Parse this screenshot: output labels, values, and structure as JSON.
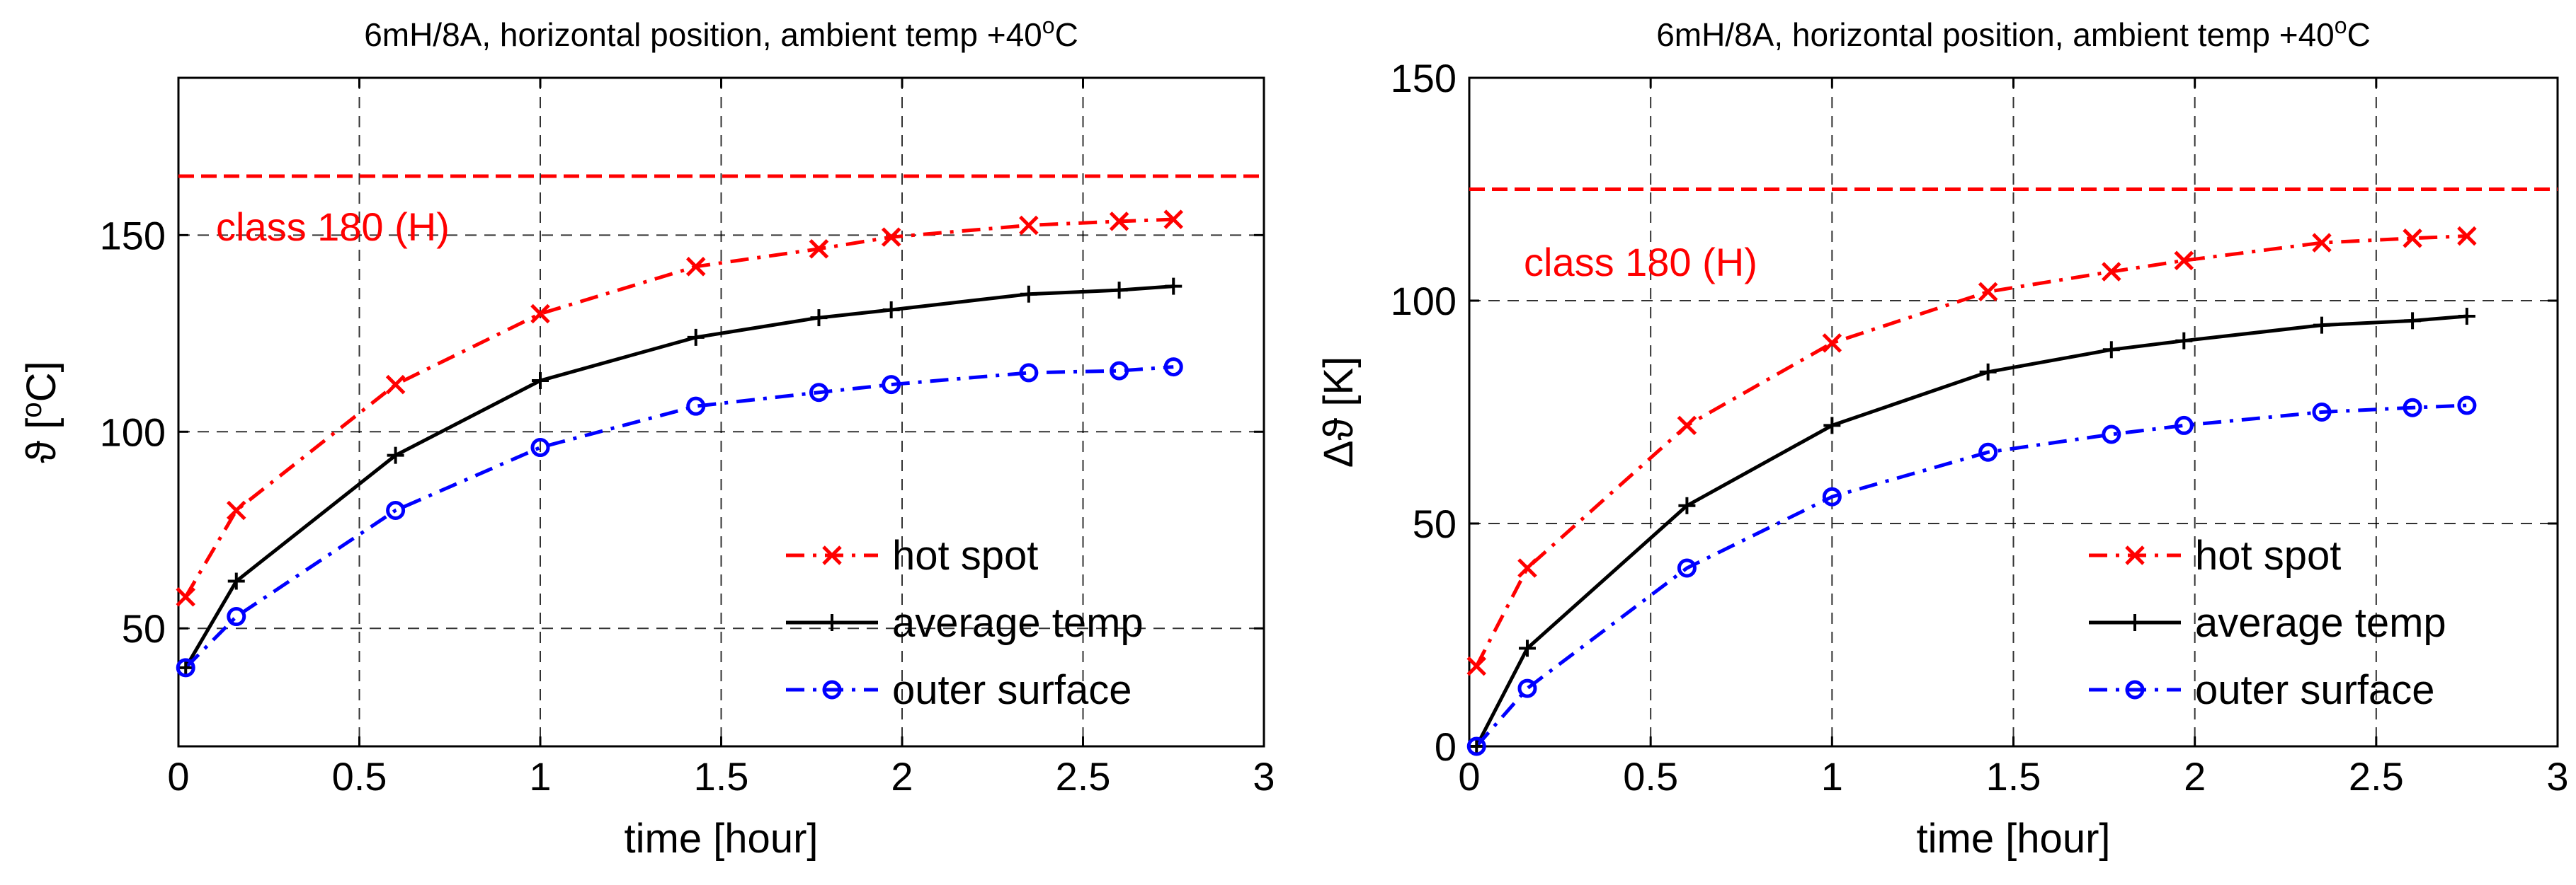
{
  "chart_data": [
    {
      "type": "line",
      "title": "6mH/8A, horizontal position, ambient temp +40",
      "title_sup": "o",
      "title_unit": "C",
      "xlabel": "time [hour]",
      "ylabel_prefix": "ϑ [",
      "ylabel_sup": "o",
      "ylabel_suffix": "C]",
      "xlim": [
        0,
        3
      ],
      "ylim": [
        20,
        190
      ],
      "xticks": [
        0,
        0.5,
        1,
        1.5,
        2,
        2.5,
        3
      ],
      "xtick_labels": [
        "0",
        "0.5",
        "1",
        "1.5",
        "2",
        "2.5",
        "3"
      ],
      "yticks": [
        50,
        100,
        150
      ],
      "ytick_labels": [
        "50",
        "100",
        "150"
      ],
      "grid": true,
      "legend_position": "bottom-right",
      "limit_line": {
        "value": 165,
        "label": "class 180 (H)",
        "color": "#ff0000"
      },
      "series": [
        {
          "name": "hot spot",
          "color": "#ff0000",
          "style": "dashdot",
          "marker": "x",
          "x": [
            0.02,
            0.16,
            0.6,
            1.0,
            1.43,
            1.77,
            1.97,
            2.35,
            2.6,
            2.75
          ],
          "y": [
            58,
            80,
            112,
            130,
            142,
            146.5,
            149.5,
            152.5,
            153.5,
            154
          ]
        },
        {
          "name": "average temp",
          "color": "#000000",
          "style": "solid",
          "marker": "+",
          "x": [
            0.02,
            0.16,
            0.6,
            1.0,
            1.43,
            1.77,
            1.97,
            2.35,
            2.6,
            2.75
          ],
          "y": [
            40,
            62,
            94,
            113,
            124,
            129,
            131,
            135,
            136,
            137
          ]
        },
        {
          "name": "outer surface",
          "color": "#0000ff",
          "style": "dashdot",
          "marker": "o",
          "x": [
            0.02,
            0.16,
            0.6,
            1.0,
            1.43,
            1.77,
            1.97,
            2.35,
            2.6,
            2.75
          ],
          "y": [
            40,
            53,
            80,
            96,
            106.5,
            110,
            112,
            115,
            115.5,
            116.5
          ]
        }
      ]
    },
    {
      "type": "line",
      "title": "6mH/8A, horizontal position, ambient temp +40",
      "title_sup": "o",
      "title_unit": "C",
      "xlabel": "time [hour]",
      "ylabel_prefix": "Δϑ [K]",
      "ylabel_sup": "",
      "ylabel_suffix": "",
      "xlim": [
        0,
        3
      ],
      "ylim": [
        0,
        150
      ],
      "xticks": [
        0,
        0.5,
        1,
        1.5,
        2,
        2.5,
        3
      ],
      "xtick_labels": [
        "0",
        "0.5",
        "1",
        "1.5",
        "2",
        "2.5",
        "3"
      ],
      "yticks": [
        0,
        50,
        100,
        150
      ],
      "ytick_labels": [
        "0",
        "50",
        "100",
        "150"
      ],
      "grid": true,
      "legend_position": "bottom-right",
      "limit_line": {
        "value": 125,
        "label": "class 180 (H)",
        "color": "#ff0000"
      },
      "series": [
        {
          "name": "hot spot",
          "color": "#ff0000",
          "style": "dashdot",
          "marker": "x",
          "x": [
            0.02,
            0.16,
            0.6,
            1.0,
            1.43,
            1.77,
            1.97,
            2.35,
            2.6,
            2.75
          ],
          "y": [
            18,
            40,
            72,
            90.5,
            102,
            106.5,
            109,
            113,
            114,
            114.5
          ]
        },
        {
          "name": "average temp",
          "color": "#000000",
          "style": "solid",
          "marker": "+",
          "x": [
            0.02,
            0.16,
            0.6,
            1.0,
            1.43,
            1.77,
            1.97,
            2.35,
            2.6,
            2.75
          ],
          "y": [
            0,
            22,
            54,
            72,
            84,
            89,
            91,
            94.5,
            95.5,
            96.5
          ]
        },
        {
          "name": "outer surface",
          "color": "#0000ff",
          "style": "dashdot",
          "marker": "o",
          "x": [
            0.02,
            0.16,
            0.6,
            1.0,
            1.43,
            1.77,
            1.97,
            2.35,
            2.6,
            2.75
          ],
          "y": [
            0,
            13,
            40,
            56,
            66,
            70,
            72,
            75,
            76,
            76.5
          ]
        }
      ]
    }
  ]
}
